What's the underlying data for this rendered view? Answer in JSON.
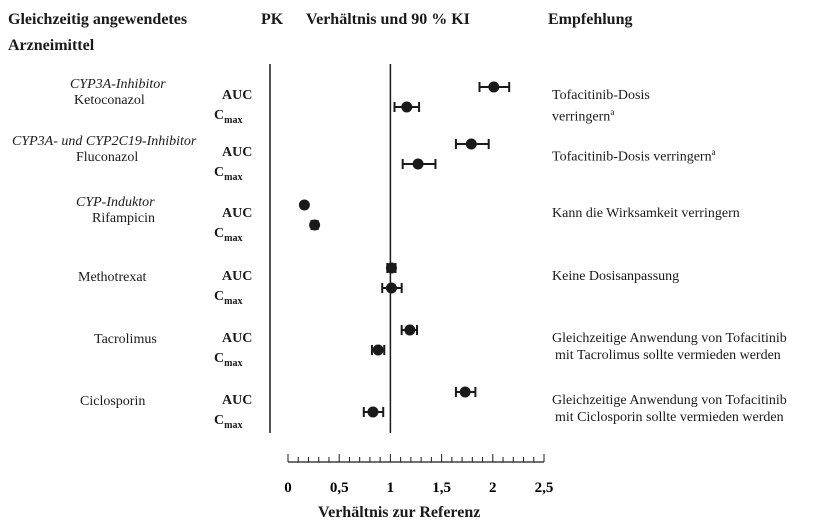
{
  "headers": {
    "drug": "Gleichzeitig angewendetes",
    "drug2": "Arzneimittel",
    "pk": "PK",
    "ratio": "Verhältnis und 90 % KI",
    "recommendation": "Empfehlung"
  },
  "pk_labels": {
    "auc": "AUC",
    "cmax_main": "C",
    "cmax_sub": "max"
  },
  "rows": [
    {
      "category": "CYP3A-Inhibitor",
      "name": "Ketoconazol",
      "rec_lines": [
        "Tofacitinib-Dosis",
        "verringern"
      ],
      "rec_sup": "a"
    },
    {
      "category": "CYP3A- und CYP2C19-Inhibitor",
      "name": "Fluconazol",
      "rec_lines": [
        "Tofacitinib-Dosis verringern"
      ],
      "rec_sup": "a"
    },
    {
      "category": "CYP-Induktor",
      "name": "Rifampicin",
      "rec_lines": [
        "Kann die Wirksamkeit verringern"
      ],
      "rec_sup": ""
    },
    {
      "category": "",
      "name": "Methotrexat",
      "rec_lines": [
        "Keine Dosisanpassung"
      ],
      "rec_sup": ""
    },
    {
      "category": "",
      "name": "Tacrolimus",
      "rec_lines": [
        "Gleichzeitige Anwendung von Tofacitinib",
        "mit Tacrolimus sollte vermieden werden"
      ],
      "rec_sup": ""
    },
    {
      "category": "",
      "name": "Ciclosporin",
      "rec_lines": [
        "Gleichzeitige Anwendung von Tofacitinib",
        "mit Ciclosporin sollte vermieden werden"
      ],
      "rec_sup": ""
    }
  ],
  "chart_data": {
    "type": "scatter",
    "xlabel": "Verhältnis zur Referenz",
    "xlim": [
      0,
      2.5
    ],
    "xticks": [
      0,
      0.5,
      1,
      1.5,
      2,
      2.5
    ],
    "xtick_labels": [
      "0",
      "0,5",
      "1",
      "1,5",
      "2",
      "2,5"
    ],
    "reference_line": 1,
    "points": [
      {
        "drug": "Ketoconazol",
        "pk": "AUC",
        "ratio": 2.01,
        "lo": 1.87,
        "hi": 2.16
      },
      {
        "drug": "Ketoconazol",
        "pk": "Cmax",
        "ratio": 1.16,
        "lo": 1.04,
        "hi": 1.28
      },
      {
        "drug": "Fluconazol",
        "pk": "AUC",
        "ratio": 1.79,
        "lo": 1.64,
        "hi": 1.96
      },
      {
        "drug": "Fluconazol",
        "pk": "Cmax",
        "ratio": 1.27,
        "lo": 1.12,
        "hi": 1.44
      },
      {
        "drug": "Rifampicin",
        "pk": "AUC",
        "ratio": 0.16,
        "lo": 0.14,
        "hi": 0.17
      },
      {
        "drug": "Rifampicin",
        "pk": "Cmax",
        "ratio": 0.26,
        "lo": 0.23,
        "hi": 0.29
      },
      {
        "drug": "Methotrexat",
        "pk": "AUC",
        "ratio": 1.01,
        "lo": 0.97,
        "hi": 1.05
      },
      {
        "drug": "Methotrexat",
        "pk": "Cmax",
        "ratio": 1.01,
        "lo": 0.92,
        "hi": 1.11
      },
      {
        "drug": "Tacrolimus",
        "pk": "AUC",
        "ratio": 1.19,
        "lo": 1.11,
        "hi": 1.26
      },
      {
        "drug": "Tacrolimus",
        "pk": "Cmax",
        "ratio": 0.88,
        "lo": 0.82,
        "hi": 0.94
      },
      {
        "drug": "Ciclosporin",
        "pk": "AUC",
        "ratio": 1.73,
        "lo": 1.64,
        "hi": 1.83
      },
      {
        "drug": "Ciclosporin",
        "pk": "Cmax",
        "ratio": 0.83,
        "lo": 0.74,
        "hi": 0.93
      }
    ]
  }
}
